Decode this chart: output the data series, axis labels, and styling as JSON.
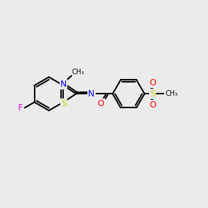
{
  "bg_color": "#ebebeb",
  "bond_color": "#000000",
  "bond_width": 1.5,
  "atom_colors": {
    "N": "#0000ff",
    "S": "#cccc00",
    "O": "#ff0000",
    "F": "#ee00ee"
  },
  "figsize": [
    3.0,
    3.0
  ],
  "dpi": 100,
  "xlim": [
    0,
    10
  ],
  "ylim": [
    0,
    10
  ]
}
